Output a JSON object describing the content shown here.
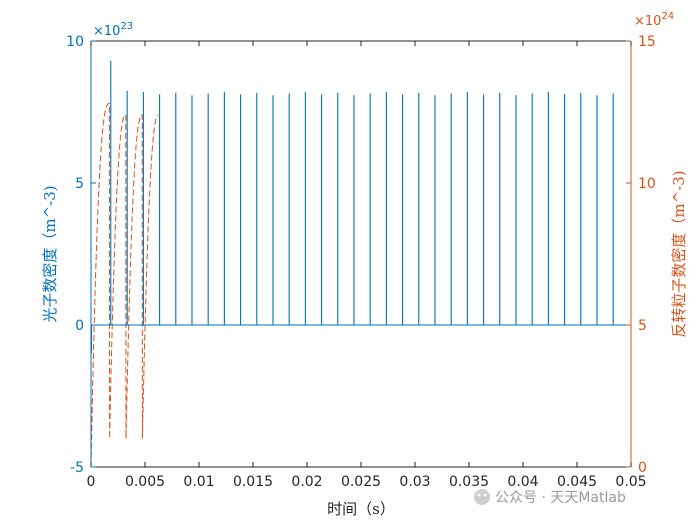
{
  "chart_data": {
    "type": "line",
    "xlabel": "时间（s）",
    "x_ticks": [
      "0",
      "0.005",
      "0.01",
      "0.015",
      "0.02",
      "0.025",
      "0.03",
      "0.035",
      "0.04",
      "0.045",
      "0.05"
    ],
    "xlim": [
      0,
      0.05
    ],
    "left_axis": {
      "label": "光子数密度（m^-3)",
      "exponent": "×10^23",
      "exp_prefix": "×10",
      "exp_power": "23",
      "ticks": [
        "10",
        "5",
        "0",
        "-5"
      ],
      "ylim": [
        -5,
        10
      ],
      "color": "#0072BD"
    },
    "right_axis": {
      "label": "反转粒子数密度（m^-3)",
      "exponent": "×10^24",
      "exp_prefix": "×10",
      "exp_power": "24",
      "ticks": [
        "15",
        "10",
        "5",
        "0"
      ],
      "ylim": [
        0,
        15
      ],
      "color": "#D95319"
    },
    "grid": false,
    "series": [
      {
        "axis": "left",
        "style": "solid spikes",
        "color": "#0072BD",
        "baseline": 0,
        "first_spike": {
          "x": 0.00183,
          "y": 9.3
        },
        "second_spike": {
          "x": 0.00335,
          "y": 8.25
        },
        "spike_peak": 8.15,
        "spike_period": 0.0015,
        "spike_count": 32
      },
      {
        "axis": "right",
        "style": "dashed sawtooth",
        "color": "#D95319",
        "initial_rise": {
          "x_start": 0,
          "y_start": 0,
          "x_peak": 0.0017,
          "y_peak": 12.8
        },
        "peak": 12.4,
        "trough": 1.0,
        "period": 0.0015
      }
    ]
  },
  "watermark": "公众号 · 天天Matlab"
}
